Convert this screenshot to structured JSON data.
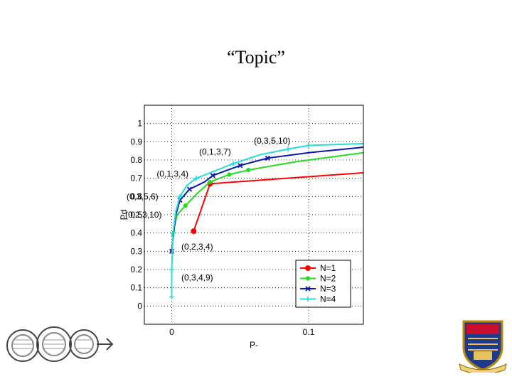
{
  "slide": {
    "title": "“Topic”"
  },
  "colors": {
    "N1": "#ff0000",
    "N2": "#22dd22",
    "N3": "#0a1aa8",
    "N4": "#22dddd"
  },
  "chart_data": {
    "type": "line",
    "title": "",
    "xlabel": "P-",
    "ylabel": "Pd",
    "xlim": [
      -0.02,
      0.14
    ],
    "ylim": [
      -0.1,
      1.1
    ],
    "grid": true,
    "x_ticks": [
      {
        "v": 0,
        "label": "0"
      },
      {
        "v": 0.1,
        "label": "0.1"
      }
    ],
    "y_ticks": [
      {
        "v": 0,
        "label": "0"
      },
      {
        "v": 0.1,
        "label": "0.1"
      },
      {
        "v": 0.2,
        "label": "0.2"
      },
      {
        "v": 0.3,
        "label": "0.3"
      },
      {
        "v": 0.4,
        "label": "0.4"
      },
      {
        "v": 0.5,
        "label": "0.5"
      },
      {
        "v": 0.6,
        "label": "0.6"
      },
      {
        "v": 0.7,
        "label": "0.7"
      },
      {
        "v": 0.8,
        "label": "0.8"
      },
      {
        "v": 0.9,
        "label": "0.9"
      },
      {
        "v": 1,
        "label": "1"
      }
    ],
    "legend_position": "bottom-right",
    "series": [
      {
        "name": "N=1",
        "color": "#ff0000",
        "marker": "circle",
        "points": [
          [
            0.016,
            0.41
          ],
          [
            0.028,
            0.67
          ],
          [
            0.14,
            0.73
          ]
        ],
        "markers": [
          [
            0.016,
            0.41
          ],
          [
            0.028,
            0.67
          ]
        ]
      },
      {
        "name": "N=2",
        "color": "#22dd22",
        "marker": "dot",
        "points": [
          [
            0.0,
            0.38
          ],
          [
            0.004,
            0.5
          ],
          [
            0.01,
            0.55
          ],
          [
            0.019,
            0.62
          ],
          [
            0.028,
            0.68
          ],
          [
            0.042,
            0.72
          ],
          [
            0.056,
            0.745
          ],
          [
            0.09,
            0.79
          ],
          [
            0.14,
            0.84
          ]
        ],
        "markers": [
          [
            0.01,
            0.55
          ],
          [
            0.028,
            0.68
          ],
          [
            0.042,
            0.72
          ],
          [
            0.056,
            0.745
          ]
        ]
      },
      {
        "name": "N=3",
        "color": "#0a1aa8",
        "marker": "x",
        "points": [
          [
            0.0,
            0.3
          ],
          [
            0.001,
            0.37
          ],
          [
            0.003,
            0.5
          ],
          [
            0.006,
            0.58
          ],
          [
            0.013,
            0.64
          ],
          [
            0.024,
            0.68
          ],
          [
            0.03,
            0.715
          ],
          [
            0.05,
            0.77
          ],
          [
            0.07,
            0.81
          ],
          [
            0.1,
            0.84
          ],
          [
            0.14,
            0.87
          ]
        ],
        "markers": [
          [
            0.0,
            0.3
          ],
          [
            0.006,
            0.58
          ],
          [
            0.013,
            0.64
          ],
          [
            0.03,
            0.715
          ],
          [
            0.05,
            0.77
          ],
          [
            0.07,
            0.81
          ]
        ]
      },
      {
        "name": "N=4",
        "color": "#22dddd",
        "marker": "plus",
        "points": [
          [
            0.0,
            0.05
          ],
          [
            0.0,
            0.2
          ],
          [
            0.001,
            0.4
          ],
          [
            0.003,
            0.52
          ],
          [
            0.006,
            0.6
          ],
          [
            0.011,
            0.66
          ],
          [
            0.018,
            0.7
          ],
          [
            0.028,
            0.73
          ],
          [
            0.045,
            0.78
          ],
          [
            0.065,
            0.83
          ],
          [
            0.085,
            0.86
          ],
          [
            0.1,
            0.88
          ],
          [
            0.14,
            0.89
          ]
        ],
        "markers": [
          [
            0.0,
            0.05
          ],
          [
            0.0,
            0.2
          ],
          [
            0.001,
            0.4
          ],
          [
            0.006,
            0.6
          ],
          [
            0.018,
            0.7
          ],
          [
            0.045,
            0.78
          ],
          [
            0.085,
            0.86
          ],
          [
            0.1,
            0.88
          ]
        ]
      }
    ],
    "annotations": [
      {
        "text": "(0,3,5,10)",
        "x": 0.06,
        "y": 0.905
      },
      {
        "text": "(0,1,3,7)",
        "x": 0.02,
        "y": 0.845
      },
      {
        "text": "(0,1,3,4)",
        "x": -0.011,
        "y": 0.725
      },
      {
        "text": "(0,3,5,6)",
        "x": -0.033,
        "y": 0.6
      },
      {
        "text": "(0,2,3,10)",
        "x": -0.034,
        "y": 0.5
      },
      {
        "text": "(0,2,3,4)",
        "x": 0.007,
        "y": 0.325
      },
      {
        "text": "(0,3,4,9)",
        "x": 0.007,
        "y": 0.155
      }
    ]
  }
}
